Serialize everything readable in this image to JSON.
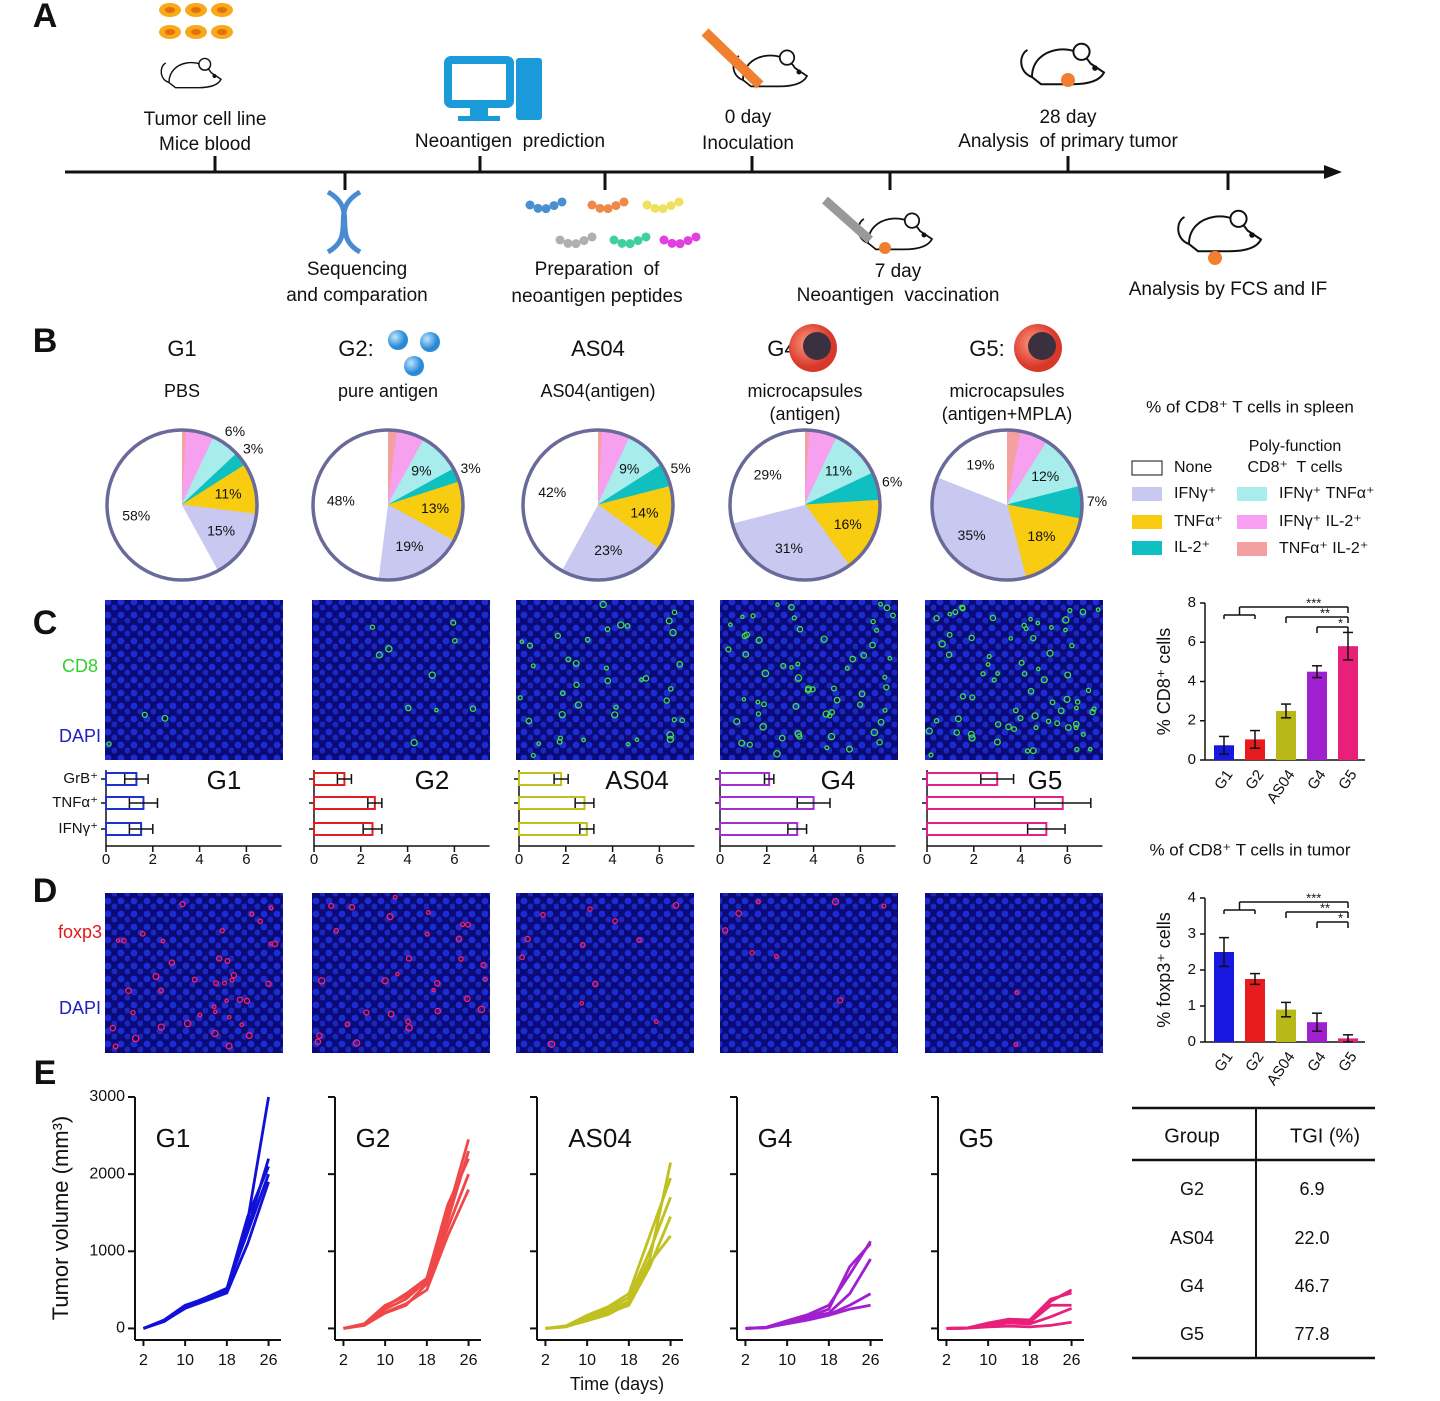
{
  "figure": {
    "panel_labels": [
      "A",
      "B",
      "C",
      "D",
      "E"
    ],
    "timeline": {
      "above": [
        [
          "Tumor cell line",
          "Mice blood"
        ],
        [
          "Neoantigen  prediction"
        ],
        [
          "0 day",
          "Inoculation"
        ],
        [
          "28 day",
          "Analysis  of primary tumor"
        ]
      ],
      "below": [
        [
          "Sequencing",
          "and comparation"
        ],
        [
          "Preparation  of",
          "neoantigen peptides"
        ],
        [
          "7 day",
          "Neoantigen  vaccination"
        ],
        [
          "Analysis by FCS and IF"
        ]
      ]
    },
    "legend": {
      "title": "% of CD8⁺ T cells in spleen",
      "poly_title": [
        "Poly-function",
        "CD8⁺  T cells"
      ],
      "categories": [
        "None",
        "IFNγ⁺",
        "TNFα⁺",
        "IL-2⁺",
        "IFNγ⁺ TNFα⁺",
        "IFNγ⁺ IL-2⁺",
        "TNFα⁺ IL-2⁺"
      ],
      "colors": [
        "#ffffff",
        "#c8c8f0",
        "#f8cc10",
        "#10c0c0",
        "#a8ecec",
        "#f8a0f0",
        "#f4a0a0"
      ]
    },
    "image_labels": {
      "C": [
        "CD8",
        "DAPI"
      ],
      "D": [
        "foxp3",
        "DAPI"
      ]
    },
    "table": {
      "header": [
        "Group",
        "TGI (%)"
      ],
      "rows": [
        [
          "G2",
          "6.9"
        ],
        [
          "AS04",
          "22.0"
        ],
        [
          "G4",
          "46.7"
        ],
        [
          "G5",
          "77.8"
        ]
      ]
    }
  },
  "chart_data": [
    {
      "type": "pie",
      "title": "G1",
      "subtitle": [
        "PBS"
      ],
      "values": [
        58,
        15,
        11,
        3,
        6,
        6,
        1
      ],
      "value_labels": [
        "58%",
        "15%",
        "11%",
        "3%",
        "6%",
        null,
        null
      ]
    },
    {
      "type": "pie",
      "title": "G2:",
      "subtitle": [
        "pure antigen"
      ],
      "values": [
        48,
        19,
        13,
        3,
        9,
        6,
        2
      ],
      "value_labels": [
        "48%",
        "19%",
        "13%",
        "3%",
        "9%",
        null,
        null
      ]
    },
    {
      "type": "pie",
      "title": "AS04",
      "subtitle": [
        "AS04(antigen)"
      ],
      "values": [
        42,
        23,
        14,
        5,
        9,
        6,
        1
      ],
      "value_labels": [
        "42%",
        "23%",
        "14%",
        "5%",
        "9%",
        null,
        null
      ]
    },
    {
      "type": "pie",
      "title": "G4:",
      "subtitle": [
        "microcapsules",
        "(antigen)"
      ],
      "values": [
        29,
        31,
        16,
        6,
        11,
        6,
        1
      ],
      "value_labels": [
        "29%",
        "31%",
        "16%",
        "6%",
        "11%",
        null,
        null
      ]
    },
    {
      "type": "pie",
      "title": "G5:",
      "subtitle": [
        "microcapsules",
        "(antigen+MPLA)"
      ],
      "values": [
        19,
        35,
        18,
        7,
        12,
        6,
        3
      ],
      "value_labels": [
        "19%",
        "35%",
        "18%",
        "7%",
        "12%",
        null,
        null
      ]
    },
    {
      "type": "hbar",
      "title": "G1",
      "categories": [
        "GrB⁺",
        "TNFα⁺",
        "IFNγ⁺"
      ],
      "values": [
        1.3,
        1.6,
        1.5
      ],
      "errors": [
        0.5,
        0.6,
        0.5
      ],
      "color": "#2030d0",
      "xlim": [
        0,
        7.5
      ],
      "xticks": [
        0,
        2,
        4,
        6
      ]
    },
    {
      "type": "hbar",
      "title": "G2",
      "values": [
        1.3,
        2.6,
        2.5
      ],
      "errors": [
        0.3,
        0.3,
        0.4
      ],
      "color": "#e02020",
      "xlim": [
        0,
        7.5
      ],
      "xticks": [
        0,
        2,
        4,
        6
      ]
    },
    {
      "type": "hbar",
      "title": "AS04",
      "values": [
        1.8,
        2.8,
        2.9
      ],
      "errors": [
        0.3,
        0.4,
        0.3
      ],
      "color": "#c0c020",
      "xlim": [
        0,
        7.5
      ],
      "xticks": [
        0,
        2,
        4,
        6
      ]
    },
    {
      "type": "hbar",
      "title": "G4",
      "values": [
        2.1,
        4.0,
        3.3
      ],
      "errors": [
        0.2,
        0.7,
        0.4
      ],
      "color": "#a030d0",
      "xlim": [
        0,
        7.5
      ],
      "xticks": [
        0,
        2,
        4,
        6
      ]
    },
    {
      "type": "hbar",
      "title": "G5",
      "values": [
        3.0,
        5.8,
        5.1
      ],
      "errors": [
        0.7,
        1.2,
        0.8
      ],
      "color": "#e0208a",
      "xlim": [
        0,
        7.5
      ],
      "xticks": [
        0,
        2,
        4,
        6
      ]
    },
    {
      "type": "bar",
      "title": "% of CD8⁺ T cells in tumor",
      "ylabel": "% CD8⁺ cells",
      "categories": [
        "G1",
        "G2",
        "AS04",
        "G4",
        "G5"
      ],
      "values": [
        0.75,
        1.05,
        2.5,
        4.5,
        5.8
      ],
      "errors": [
        0.45,
        0.45,
        0.35,
        0.3,
        0.7
      ],
      "colors": [
        "#1818e0",
        "#e81c1c",
        "#b8b818",
        "#a020d0",
        "#e8207a"
      ],
      "ylim": [
        0,
        8
      ],
      "yticks": [
        0,
        2,
        4,
        6,
        8
      ],
      "significance": [
        "***",
        "**",
        "*"
      ]
    },
    {
      "type": "bar",
      "ylabel": "% foxp3⁺ cells",
      "categories": [
        "G1",
        "G2",
        "AS04",
        "G4",
        "G5"
      ],
      "values": [
        2.5,
        1.75,
        0.9,
        0.55,
        0.1
      ],
      "errors": [
        0.4,
        0.15,
        0.2,
        0.25,
        0.1
      ],
      "colors": [
        "#1818e0",
        "#e81c1c",
        "#b8b818",
        "#a020d0",
        "#e8207a"
      ],
      "ylim": [
        0,
        4
      ],
      "yticks": [
        0,
        1,
        2,
        3,
        4
      ],
      "significance": [
        "***",
        "**",
        "*"
      ]
    },
    {
      "type": "line",
      "title": "G1",
      "ylabel": "Tumor volume (mm³)",
      "tick_labels": true,
      "x": [
        2,
        6,
        10,
        14,
        18,
        22,
        26
      ],
      "xlim": [
        0,
        28
      ],
      "xticks": [
        2,
        10,
        18,
        26
      ],
      "ylim": [
        -150,
        3000
      ],
      "yticks": [
        0,
        1000,
        2000,
        3000
      ],
      "color": "#1010d8",
      "series": [
        {
          "values": [
            0,
            110,
            300,
            390,
            480,
            1400,
            3000
          ]
        },
        {
          "values": [
            0,
            90,
            270,
            370,
            500,
            1300,
            2200
          ]
        },
        {
          "values": [
            0,
            100,
            290,
            400,
            520,
            1250,
            2000
          ]
        },
        {
          "values": [
            0,
            95,
            260,
            360,
            460,
            1100,
            1900
          ]
        },
        {
          "values": [
            0,
            105,
            280,
            380,
            510,
            1450,
            2100
          ]
        }
      ]
    },
    {
      "type": "line",
      "title": "G2",
      "tick_labels": false,
      "x": [
        2,
        6,
        10,
        14,
        18,
        22,
        26
      ],
      "xlim": [
        0,
        28
      ],
      "xticks": [
        2,
        10,
        18,
        26
      ],
      "ylim": [
        -150,
        3000
      ],
      "yticks": [
        0,
        1000,
        2000,
        3000
      ],
      "color": "#f04848",
      "series": [
        {
          "values": [
            0,
            60,
            300,
            420,
            600,
            1500,
            2450
          ]
        },
        {
          "values": [
            0,
            50,
            250,
            380,
            620,
            1400,
            2300
          ]
        },
        {
          "values": [
            0,
            40,
            200,
            300,
            580,
            1300,
            2000
          ]
        },
        {
          "values": [
            0,
            55,
            280,
            450,
            650,
            1600,
            2200
          ]
        },
        {
          "values": [
            0,
            45,
            210,
            320,
            500,
            1200,
            1800
          ]
        }
      ]
    },
    {
      "type": "line",
      "title": "AS04",
      "xlabel": "Time (days)",
      "tick_labels": false,
      "x": [
        2,
        6,
        10,
        14,
        18,
        22,
        26
      ],
      "xlim": [
        0,
        28
      ],
      "xticks": [
        2,
        10,
        18,
        26
      ],
      "ylim": [
        -150,
        3000
      ],
      "yticks": [
        0,
        1000,
        2000,
        3000
      ],
      "color": "#c0c020",
      "series": [
        {
          "values": [
            0,
            30,
            150,
            220,
            350,
            900,
            2150
          ]
        },
        {
          "values": [
            0,
            25,
            130,
            250,
            400,
            1000,
            1700
          ]
        },
        {
          "values": [
            0,
            20,
            120,
            200,
            300,
            800,
            1450
          ]
        },
        {
          "values": [
            0,
            35,
            170,
            280,
            450,
            1200,
            1950
          ]
        },
        {
          "values": [
            0,
            25,
            100,
            180,
            320,
            850,
            1200
          ]
        }
      ]
    },
    {
      "type": "line",
      "title": "G4",
      "tick_labels": false,
      "x": [
        2,
        6,
        10,
        14,
        18,
        22,
        26
      ],
      "xlim": [
        0,
        28
      ],
      "xticks": [
        2,
        10,
        18,
        26
      ],
      "ylim": [
        -150,
        3000
      ],
      "yticks": [
        0,
        1000,
        2000,
        3000
      ],
      "color": "#a020d0",
      "series": [
        {
          "values": [
            0,
            15,
            100,
            180,
            300,
            700,
            1130
          ]
        },
        {
          "values": [
            0,
            10,
            80,
            150,
            250,
            800,
            1100
          ]
        },
        {
          "values": [
            0,
            12,
            90,
            140,
            200,
            450,
            900
          ]
        },
        {
          "values": [
            0,
            8,
            70,
            130,
            180,
            300,
            450
          ]
        },
        {
          "values": [
            0,
            10,
            60,
            110,
            170,
            250,
            300
          ]
        }
      ]
    },
    {
      "type": "line",
      "title": "G5",
      "tick_labels": false,
      "x": [
        2,
        6,
        10,
        14,
        18,
        22,
        26
      ],
      "xlim": [
        0,
        28
      ],
      "xticks": [
        2,
        10,
        18,
        26
      ],
      "ylim": [
        -150,
        3000
      ],
      "yticks": [
        0,
        1000,
        2000,
        3000
      ],
      "color": "#e8207a",
      "series": [
        {
          "values": [
            0,
            5,
            60,
            100,
            100,
            350,
            500
          ]
        },
        {
          "values": [
            0,
            6,
            70,
            120,
            110,
            380,
            460
          ]
        },
        {
          "values": [
            0,
            4,
            50,
            90,
            80,
            300,
            300
          ]
        },
        {
          "values": [
            0,
            5,
            40,
            70,
            60,
            150,
            260
          ]
        },
        {
          "values": [
            0,
            3,
            20,
            30,
            20,
            40,
            80
          ]
        }
      ]
    }
  ]
}
